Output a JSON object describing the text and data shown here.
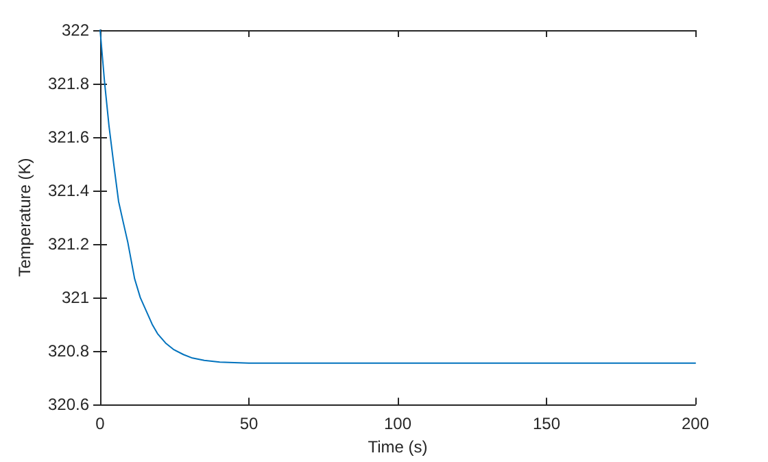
{
  "chart_data": {
    "type": "line",
    "xlabel": "Time (s)",
    "ylabel": "Temperature (K)",
    "x": [
      0,
      1.5,
      3,
      4.6,
      6.2,
      7.8,
      9.3,
      11.6,
      13.5,
      15.5,
      17.5,
      19.3,
      22,
      24.8,
      28,
      31,
      35,
      40.2,
      45,
      50,
      60,
      80,
      100,
      150,
      200
    ],
    "series": [
      {
        "color": "#0072bd",
        "values": [
          322,
          321.805,
          321.64,
          321.497,
          321.36,
          321.28,
          321.207,
          321.07,
          321.0,
          320.95,
          320.9,
          320.865,
          320.83,
          320.805,
          320.787,
          320.774,
          320.765,
          320.759,
          320.757,
          320.755,
          320.755,
          320.755,
          320.755,
          320.755,
          320.755
        ]
      }
    ],
    "xlim": [
      0,
      200
    ],
    "xticks": [
      0,
      50,
      100,
      150,
      200
    ],
    "ylim": [
      320.6,
      322
    ],
    "yticks": [
      320.6,
      320.8,
      321,
      321.2,
      321.4,
      321.6,
      321.8,
      322
    ],
    "marker": "none",
    "line_style": "solid"
  }
}
